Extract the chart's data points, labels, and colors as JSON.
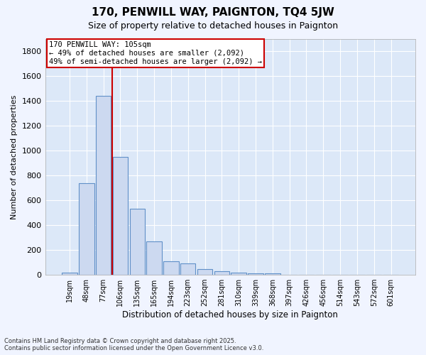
{
  "title": "170, PENWILL WAY, PAIGNTON, TQ4 5JW",
  "subtitle": "Size of property relative to detached houses in Paignton",
  "xlabel": "Distribution of detached houses by size in Paignton",
  "ylabel": "Number of detached properties",
  "categories": [
    "19sqm",
    "48sqm",
    "77sqm",
    "106sqm",
    "135sqm",
    "165sqm",
    "194sqm",
    "223sqm",
    "252sqm",
    "281sqm",
    "310sqm",
    "339sqm",
    "368sqm",
    "397sqm",
    "426sqm",
    "456sqm",
    "514sqm",
    "543sqm",
    "572sqm",
    "601sqm"
  ],
  "values": [
    20,
    740,
    1440,
    950,
    530,
    270,
    110,
    90,
    45,
    30,
    20,
    10,
    10,
    3,
    2,
    1,
    0,
    0,
    0,
    0
  ],
  "bar_color": "#ccd9f0",
  "bar_edge_color": "#6090c8",
  "ylim": [
    0,
    1900
  ],
  "yticks": [
    0,
    200,
    400,
    600,
    800,
    1000,
    1200,
    1400,
    1600,
    1800
  ],
  "red_line_index": 2.5,
  "annotation_title": "170 PENWILL WAY: 105sqm",
  "annotation_line1": "← 49% of detached houses are smaller (2,092)",
  "annotation_line2": "49% of semi-detached houses are larger (2,092) →",
  "annotation_box_color": "#ffffff",
  "annotation_box_edge": "#cc0000",
  "footer1": "Contains HM Land Registry data © Crown copyright and database right 2025.",
  "footer2": "Contains public sector information licensed under the Open Government Licence v3.0.",
  "fig_bg_color": "#f0f4ff",
  "plot_bg_color": "#dce8f8",
  "grid_color": "#ffffff"
}
